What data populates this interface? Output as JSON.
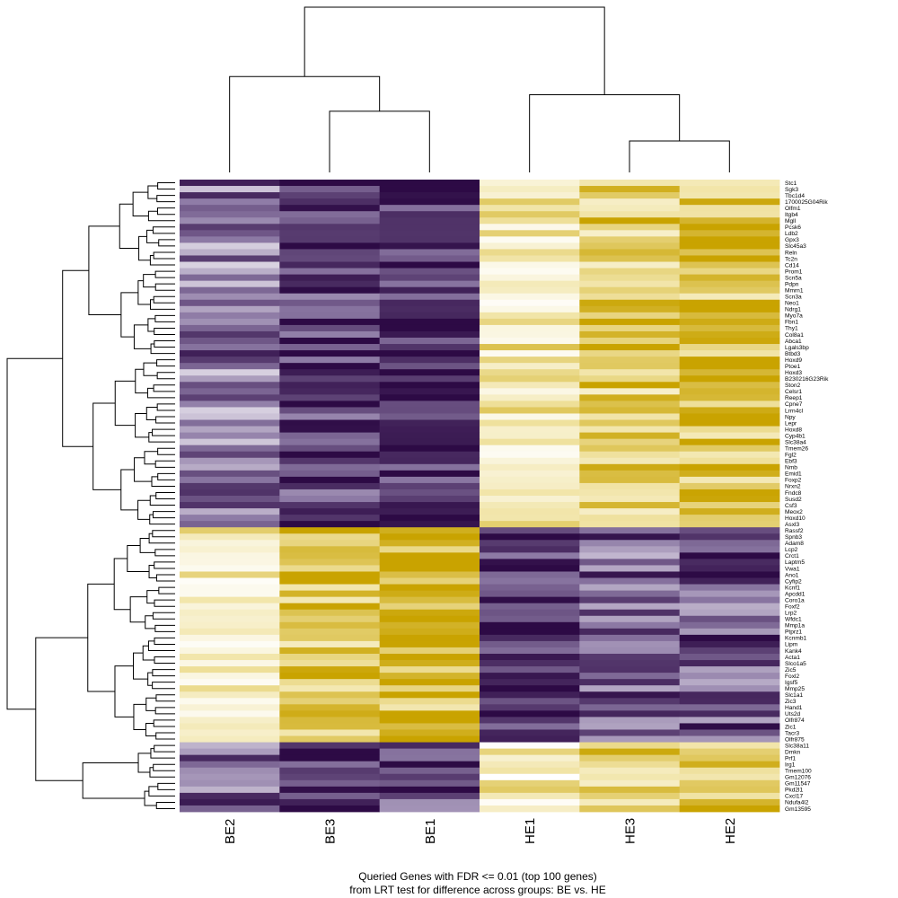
{
  "chart_data": {
    "type": "heatmap",
    "title_lines": [
      "Queried Genes with FDR <= 0.01 (top 100 genes)",
      "from LRT test for difference across groups: BE vs. HE"
    ],
    "columns": [
      "BE2",
      "BE3",
      "BE1",
      "HE1",
      "HE3",
      "HE2"
    ],
    "column_order_note": "clustered",
    "colormap": {
      "low": "#2d0a45",
      "mid_low": "#8d7aa5",
      "mid": "#ffffff",
      "mid_high": "#f1e4a6",
      "high": "#c9a300"
    },
    "value_range": [
      -1.5,
      1.5
    ],
    "column_dendrogram": {
      "merges": [
        {
          "left": "BE3",
          "right": "BE1",
          "height": 0.37
        },
        {
          "left": "BE2",
          "right": "BE3+BE1",
          "height": 0.58
        },
        {
          "left": "HE3",
          "right": "HE2",
          "height": 0.19
        },
        {
          "left": "HE1",
          "right": "HE3+HE2",
          "height": 0.47
        },
        {
          "left": "BE",
          "right": "HE",
          "height": 1.0
        }
      ]
    },
    "row_dendrogram": "shown (left)",
    "genes": [
      "Stc1",
      "Sgk3",
      "Tbc1d4",
      "1700025G04Rik",
      "Olfm1",
      "Itgb4",
      "Mgll",
      "Pcsk6",
      "Ldb2",
      "Gpx3",
      "Slc45a3",
      "Reln",
      "Tc2n",
      "Cd14",
      "Prom1",
      "Scn5a",
      "Pdpn",
      "Mmrn1",
      "Scn3a",
      "Neo1",
      "Ndrg1",
      "Myo7a",
      "Fbn1",
      "Thy1",
      "Col8a1",
      "Abca1",
      "Lgals3bp",
      "Btbd3",
      "Hoxd9",
      "Ptoe1",
      "Hoxd3",
      "B230216G23Rik",
      "Ston2",
      "Celsr1",
      "Reep1",
      "Cpne7",
      "Lrrn4cl",
      "Npy",
      "Lepr",
      "Hoxd8",
      "Cyp4b1",
      "Slc38a4",
      "Tmem26",
      "Fgl2",
      "Ebf3",
      "Nmb",
      "Emid1",
      "Foxp2",
      "Nrxn2",
      "Fndc8",
      "Susd2",
      "Csf3",
      "Meox2",
      "Hoxd10",
      "Asxl3",
      "Rassf2",
      "Spnb3",
      "Adam8",
      "Lcp2",
      "Crct1",
      "Laptm5",
      "Vwa1",
      "Ano1",
      "Cyfip2",
      "Kcnf1",
      "Apcdd1",
      "Coro1a",
      "Foxf2",
      "Lrp2",
      "Wfdc1",
      "Mmp1a",
      "Ptprz1",
      "Kcnmb1",
      "Lipm",
      "Kank4",
      "Acta1",
      "Slco1a5",
      "Zic5",
      "Foxl2",
      "Igsf5",
      "Mmp25",
      "Slc1a1",
      "Zic3",
      "Hand1",
      "Uts2d",
      "Olfr874",
      "Zic1",
      "Tacr3",
      "Olfr875",
      "Slc38a11",
      "Dmkn",
      "Prf1",
      "Irg1",
      "Tmem100",
      "Gm12076",
      "Gm11547",
      "Pkd2l1",
      "Cxcl17",
      "Ndufa4l2",
      "Gm13595"
    ],
    "gene_groups": [
      {
        "name": "BE-low / HE-high",
        "first_gene": "Stc1",
        "last_gene": "Asxl3"
      },
      {
        "name": "BE-high / HE-low",
        "first_gene": "Rassf2",
        "last_gene": "Olfr875"
      },
      {
        "name": "BE-low / HE-high",
        "first_gene": "Slc38a11",
        "last_gene": "Gm13595"
      }
    ],
    "approx_column_levels": {
      "BE2": {
        "group1": -0.8,
        "group2": 0.6,
        "group3": -0.9
      },
      "BE3": {
        "group1": -1.2,
        "group2": 1.1,
        "group3": -1.3
      },
      "BE1": {
        "group1": -1.3,
        "group2": 1.2,
        "group3": -1.1
      },
      "HE1": {
        "group1": 0.6,
        "group2": -1.3,
        "group3": 0.5
      },
      "HE3": {
        "group1": 1.0,
        "group2": -0.9,
        "group3": 1.0
      },
      "HE2": {
        "group1": 1.1,
        "group2": -1.0,
        "group3": 1.1
      }
    }
  }
}
